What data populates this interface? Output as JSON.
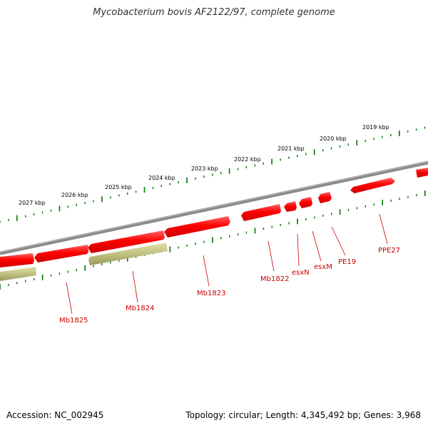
{
  "title": "Mycobacterium bovis AF2122/97, complete genome",
  "footer": {
    "accession": "Accession: NC_002945",
    "genome_info": "Topology: circular; Length: 4,345,492 bp; Genes: 3,968"
  },
  "ruler": {
    "labels": [
      "2019 kbp",
      "2020 kbp",
      "2021 kbp",
      "2022 kbp",
      "2023 kbp",
      "2024 kbp",
      "2025 kbp",
      "2026 kbp",
      "2027 kbp"
    ]
  },
  "genes": [
    "PPE27",
    "PE19",
    "esxM",
    "esxN",
    "Mb1822",
    "Mb1823",
    "Mb1824",
    "Mb1825"
  ],
  "colors": {
    "gene": "#ff0000",
    "gene_label": "#cc0000",
    "tick": "#007700",
    "backbone": "#808080",
    "cds_alt": "#c0c080"
  }
}
